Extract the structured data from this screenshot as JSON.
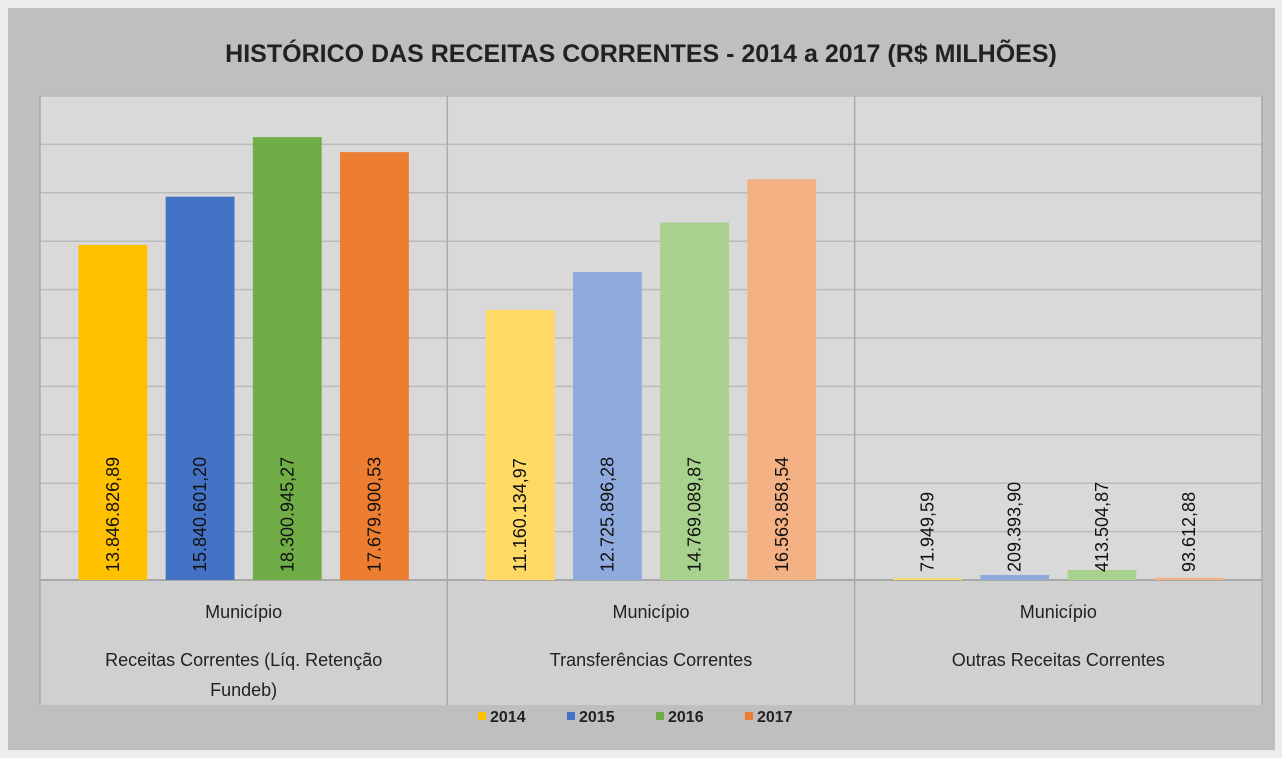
{
  "chart_data": {
    "type": "bar",
    "title": "HISTÓRICO DAS RECEITAS CORRENTES - 2014 a 2017 (R$ MILHÕES)",
    "category_parents": [
      "Município",
      "Município",
      "Município"
    ],
    "categories": [
      "Receitas Correntes (Líq. Retenção Fundeb)",
      "Transferências Correntes",
      "Outras Receitas Correntes"
    ],
    "series": [
      {
        "name": "2014",
        "color": "#FFC000",
        "bar_colors": [
          "#FFC000",
          "#FFD966",
          "#FFD966"
        ],
        "values": [
          13846826.89,
          11160134.97,
          71949.59
        ],
        "value_labels": [
          "13.846.826,89",
          "11.160.134,97",
          "71.949,59"
        ]
      },
      {
        "name": "2015",
        "color": "#4472C4",
        "bar_colors": [
          "#4472C4",
          "#8FAADC",
          "#8FAADC"
        ],
        "values": [
          15840601.2,
          12725896.28,
          209393.9
        ],
        "value_labels": [
          "15.840.601,20",
          "12.725.896,28",
          "209.393,90"
        ]
      },
      {
        "name": "2016",
        "color": "#70AD47",
        "bar_colors": [
          "#70AD47",
          "#A9D18E",
          "#A9D18E"
        ],
        "values": [
          18300945.27,
          14769089.87,
          413504.87
        ],
        "value_labels": [
          "18.300.945,27",
          "14.769.089,87",
          "413.504,87"
        ]
      },
      {
        "name": "2017",
        "color": "#ED7D31",
        "bar_colors": [
          "#ED7D31",
          "#F4B183",
          "#F4B183"
        ],
        "values": [
          17679900.53,
          16563858.54,
          93612.88
        ],
        "value_labels": [
          "17.679.900,53",
          "16.563.858,54",
          "93.612,88"
        ]
      }
    ],
    "ylim": [
      0,
      20000000
    ],
    "yticks": [
      0,
      2000000,
      4000000,
      6000000,
      8000000,
      10000000,
      12000000,
      14000000,
      16000000,
      18000000,
      20000000
    ],
    "grid": true,
    "legend": "bottom"
  }
}
